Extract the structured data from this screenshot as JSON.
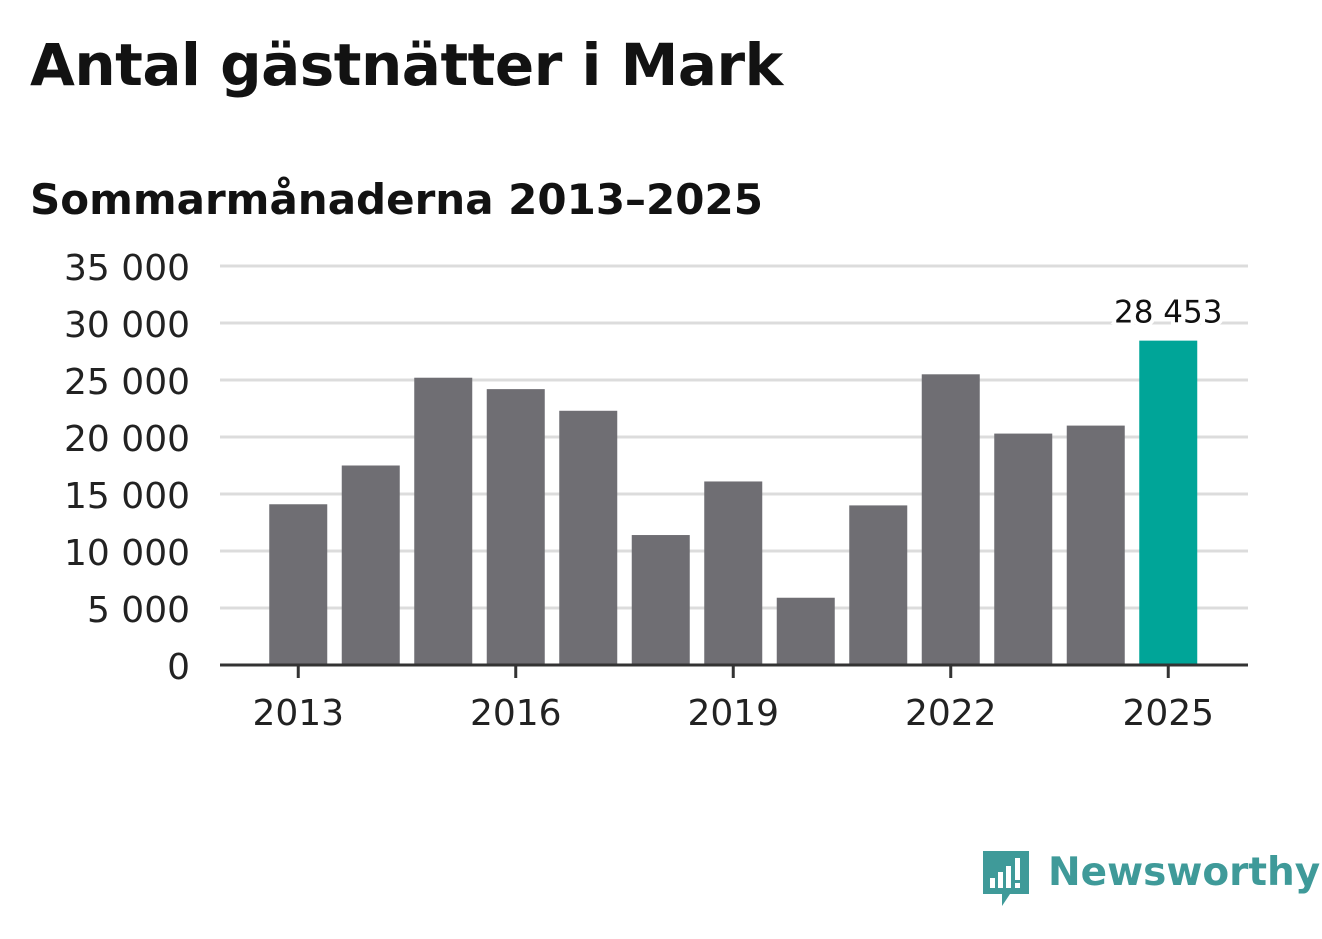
{
  "title": "Antal gästnätter i Mark",
  "subtitle": "Sommarmånaderna 2013–2025",
  "logo_text": "Newsworthy",
  "colors": {
    "bar": "#6f6e73",
    "highlight": "#00a598",
    "grid": "#dcdcdc",
    "axis": "#333333",
    "text": "#222222",
    "brand": "#3f9a99"
  },
  "chart_data": {
    "type": "bar",
    "categories": [
      "2013",
      "2014",
      "2015",
      "2016",
      "2017",
      "2018",
      "2019",
      "2020",
      "2021",
      "2022",
      "2023",
      "2024",
      "2025"
    ],
    "values": [
      14100,
      17500,
      25200,
      24200,
      22300,
      11400,
      16100,
      5900,
      14000,
      25500,
      20300,
      21000,
      28453
    ],
    "highlight_index": 12,
    "annotation": {
      "category": "2025",
      "text": "28 453"
    },
    "yticks": [
      0,
      5000,
      10000,
      15000,
      20000,
      25000,
      30000,
      35000
    ],
    "ytick_labels": [
      "0",
      "5 000",
      "10 000",
      "15 000",
      "20 000",
      "25 000",
      "30 000",
      "35 000"
    ],
    "xtick_labels": [
      "2013",
      "2016",
      "2019",
      "2022",
      "2025"
    ],
    "ylim": [
      0,
      35000
    ],
    "grid": true,
    "xlabel": "",
    "ylabel": ""
  }
}
